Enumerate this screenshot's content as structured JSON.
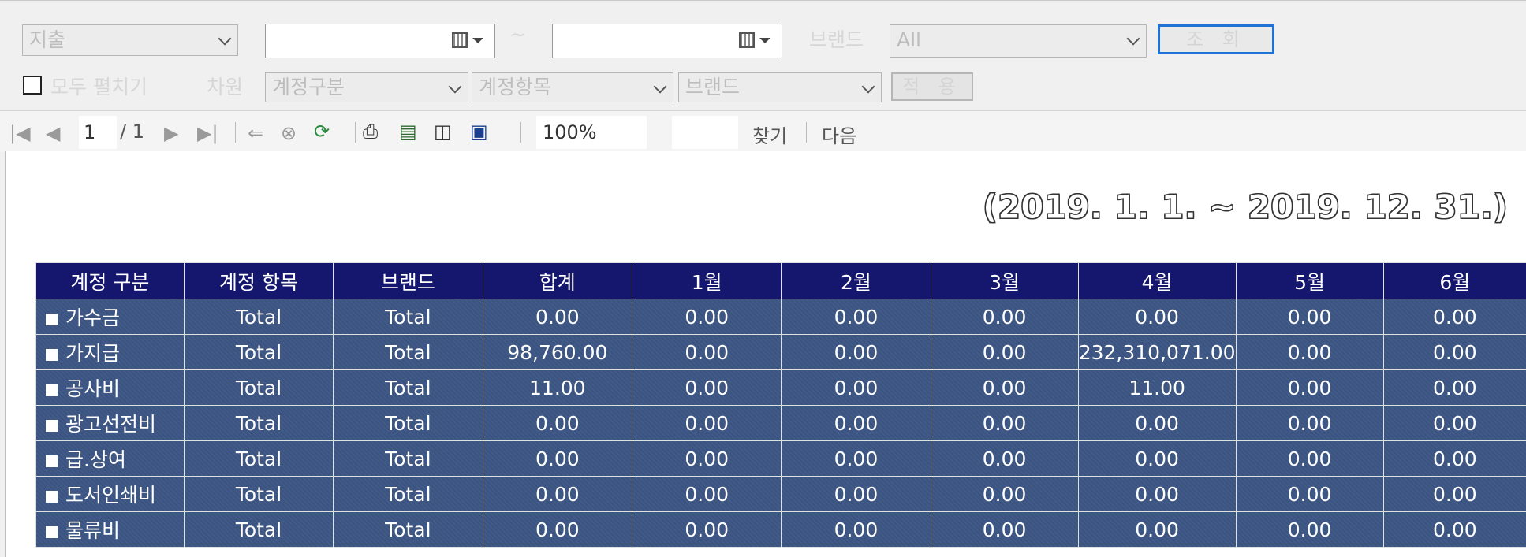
{
  "filters": {
    "type_select": "지출",
    "date_from": "",
    "date_to": "",
    "tilde": "~",
    "brand_label": "브랜드",
    "brand_select": "All",
    "search_button": "조 회",
    "expand_all_label": "모두 펼치기",
    "dimension_label": "차원",
    "dim1": "계정구분",
    "dim2": "계정항목",
    "dim3": "브랜드",
    "apply_button": "적 용"
  },
  "toolbar": {
    "page_current": "1",
    "page_total": "/ 1",
    "zoom": "100%",
    "find_label": "찾기",
    "next_label": "다음"
  },
  "report": {
    "period": "(2019. 1. 1. ~ 2019. 12. 31.)",
    "columns": [
      "계정 구분",
      "계정 항목",
      "브랜드",
      "합계",
      "1월",
      "2월",
      "3월",
      "4월",
      "5월",
      "6월"
    ],
    "rows": [
      {
        "account": "가수금",
        "item": "Total",
        "brand": "Total",
        "values": [
          "0.00",
          "0.00",
          "0.00",
          "0.00",
          "0.00",
          "0.00",
          "0.00"
        ]
      },
      {
        "account": "가지급",
        "item": "Total",
        "brand": "Total",
        "values": [
          "98,760.00",
          "0.00",
          "0.00",
          "0.00",
          "232,310,071.00",
          "0.00",
          "0.00"
        ]
      },
      {
        "account": "공사비",
        "item": "Total",
        "brand": "Total",
        "values": [
          "11.00",
          "0.00",
          "0.00",
          "0.00",
          "11.00",
          "0.00",
          "0.00"
        ]
      },
      {
        "account": "광고선전비",
        "item": "Total",
        "brand": "Total",
        "values": [
          "0.00",
          "0.00",
          "0.00",
          "0.00",
          "0.00",
          "0.00",
          "0.00"
        ]
      },
      {
        "account": "급.상여",
        "item": "Total",
        "brand": "Total",
        "values": [
          "0.00",
          "0.00",
          "0.00",
          "0.00",
          "0.00",
          "0.00",
          "0.00"
        ]
      },
      {
        "account": "도서인쇄비",
        "item": "Total",
        "brand": "Total",
        "values": [
          "0.00",
          "0.00",
          "0.00",
          "0.00",
          "0.00",
          "0.00",
          "0.00"
        ]
      },
      {
        "account": "물류비",
        "item": "Total",
        "brand": "Total",
        "values": [
          "0.00",
          "0.00",
          "0.00",
          "0.00",
          "0.00",
          "0.00",
          "0.00"
        ]
      }
    ]
  },
  "colors": {
    "header_bg": "#15176e",
    "row_bg": "#3a5381",
    "primary_button_border": "#1f73d6"
  }
}
